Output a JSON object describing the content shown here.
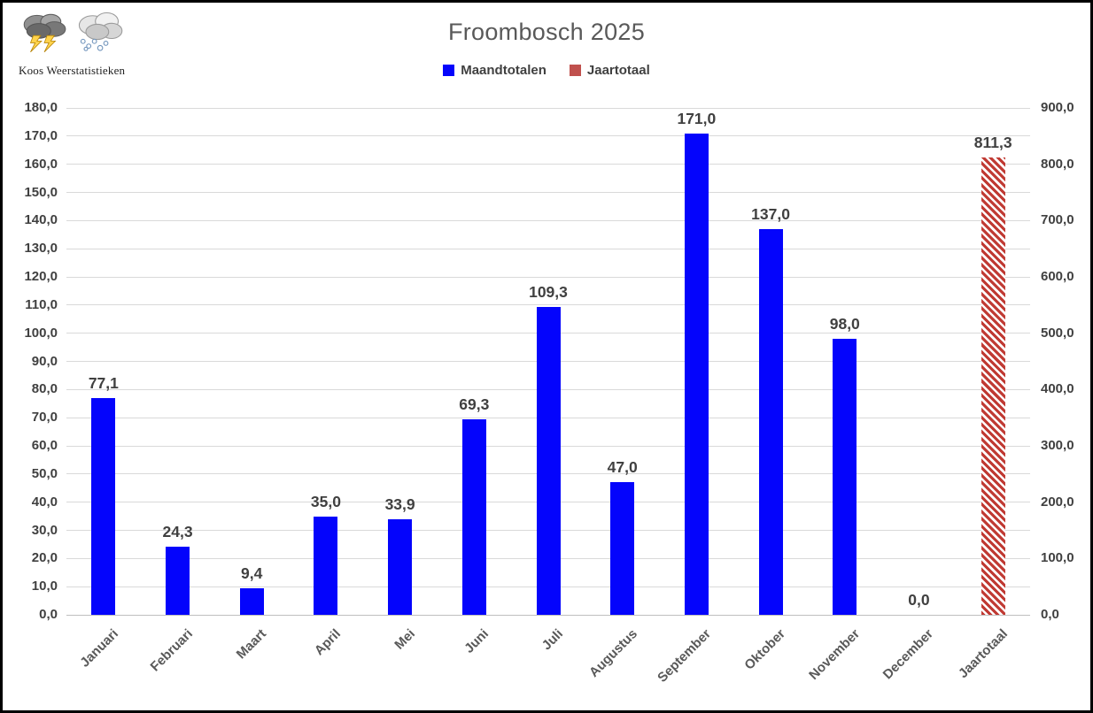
{
  "logo": {
    "text": "Koos Weerstatistieken",
    "icons": [
      "storm-cloud-icon",
      "hail-cloud-icon"
    ]
  },
  "title": "Froombosch 2025",
  "legend": [
    {
      "label": "Maandtotalen",
      "color": "#0404FC",
      "pattern": "solid"
    },
    {
      "label": "Jaartotaal",
      "color": "#C0504D",
      "pattern": "diagonal-stripes"
    }
  ],
  "chart_data": {
    "type": "bar",
    "title": "Froombosch 2025",
    "categories": [
      "Januari",
      "Februari",
      "Maart",
      "April",
      "Mei",
      "Juni",
      "Juli",
      "Augustus",
      "September",
      "Oktober",
      "November",
      "December",
      "Jaartotaal"
    ],
    "series": [
      {
        "name": "Maandtotalen",
        "color": "#0404FC",
        "axis": "left",
        "values": [
          77.1,
          24.3,
          9.4,
          35.0,
          33.9,
          69.3,
          109.3,
          47.0,
          171.0,
          137.0,
          98.0,
          0.0,
          null
        ]
      },
      {
        "name": "Jaartotaal",
        "color": "#C03A33",
        "axis": "right",
        "pattern": "diagonal-stripes",
        "values": [
          null,
          null,
          null,
          null,
          null,
          null,
          null,
          null,
          null,
          null,
          null,
          null,
          811.3
        ]
      }
    ],
    "data_labels": [
      "77,1",
      "24,3",
      "9,4",
      "35,0",
      "33,9",
      "69,3",
      "109,3",
      "47,0",
      "171,0",
      "137,0",
      "98,0",
      "0,0",
      "811,3"
    ],
    "left_axis": {
      "min": 0,
      "max": 180,
      "step": 10,
      "ticks": [
        "0,0",
        "10,0",
        "20,0",
        "30,0",
        "40,0",
        "50,0",
        "60,0",
        "70,0",
        "80,0",
        "90,0",
        "100,0",
        "110,0",
        "120,0",
        "130,0",
        "140,0",
        "150,0",
        "160,0",
        "170,0",
        "180,0"
      ]
    },
    "right_axis": {
      "min": 0,
      "max": 900,
      "step": 100,
      "ticks": [
        "0,0",
        "100,0",
        "200,0",
        "300,0",
        "400,0",
        "500,0",
        "600,0",
        "700,0",
        "800,0",
        "900,0"
      ]
    },
    "grid": "horizontal",
    "legend_position": "top-center",
    "background": "#FFFFFF"
  }
}
